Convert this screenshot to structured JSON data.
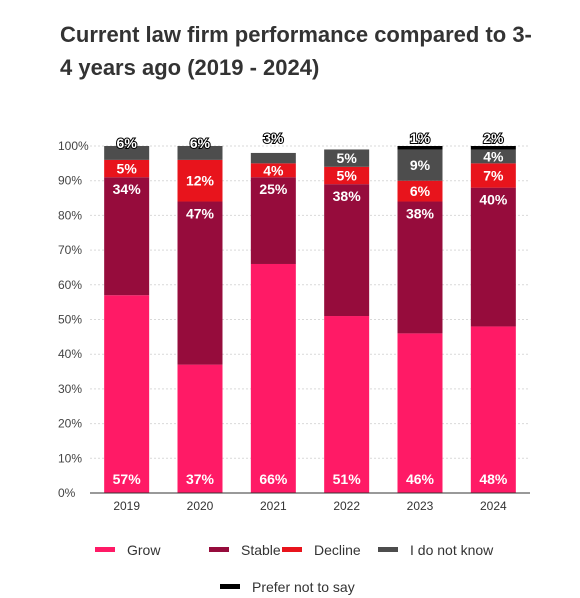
{
  "chart_data": {
    "type": "bar",
    "stacked": true,
    "title": "Current law firm performance compared to 3-4 years ago (2019 - 2024)",
    "categories": [
      "2019",
      "2020",
      "2021",
      "2022",
      "2023",
      "2024"
    ],
    "yticks": [
      "0%",
      "10%",
      "20%",
      "30%",
      "40%",
      "50%",
      "60%",
      "70%",
      "80%",
      "90%",
      "100%"
    ],
    "ylim": [
      0,
      100
    ],
    "legend_position": "bottom",
    "series": [
      {
        "name": "Grow",
        "color": "#ff1a66",
        "values": [
          57,
          37,
          66,
          51,
          46,
          48
        ],
        "labels": [
          "57%",
          "37%",
          "66%",
          "51%",
          "46%",
          "48%"
        ]
      },
      {
        "name": "Stable",
        "color": "#960c3c",
        "values": [
          34,
          47,
          25,
          38,
          38,
          40
        ],
        "labels": [
          "34%",
          "47%",
          "25%",
          "38%",
          "38%",
          "40%"
        ]
      },
      {
        "name": "Decline",
        "color": "#e8141c",
        "values": [
          5,
          12,
          4,
          5,
          6,
          7
        ],
        "labels": [
          "5%",
          "12%",
          "4%",
          "5%",
          "6%",
          "7%"
        ]
      },
      {
        "name": "I do not know",
        "color": "#4d4d4d",
        "values": [
          6,
          6,
          3,
          5,
          9,
          4
        ],
        "labels": [
          "6%",
          "6%",
          "3%",
          "5%",
          "9%",
          "4%"
        ]
      },
      {
        "name": "Prefer not to say",
        "color": "#000000",
        "values": [
          0,
          0,
          0,
          0,
          1,
          2
        ],
        "labels": [
          "",
          "",
          "",
          "",
          "1%",
          "2%"
        ]
      }
    ]
  }
}
